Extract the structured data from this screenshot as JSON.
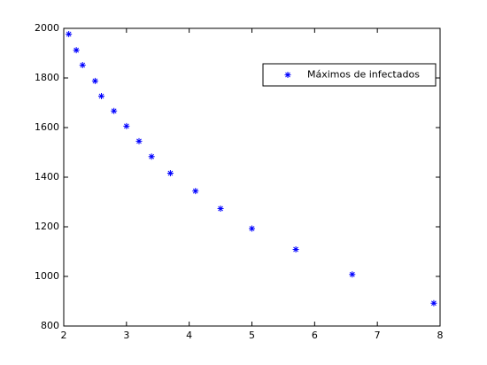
{
  "chart_data": {
    "type": "scatter",
    "series": [
      {
        "name": "Máximos de infectados",
        "color": "#0000ff",
        "x": [
          2.08,
          2.2,
          2.3,
          2.5,
          2.6,
          2.8,
          3.0,
          3.2,
          3.4,
          3.7,
          4.1,
          4.5,
          5.0,
          5.7,
          6.6,
          7.9
        ],
        "values": [
          1977,
          1912,
          1852,
          1788,
          1727,
          1667,
          1606,
          1545,
          1483,
          1416,
          1344,
          1273,
          1193,
          1109,
          1008,
          892
        ]
      }
    ],
    "xlim": [
      2,
      8
    ],
    "xticks": [
      2,
      3,
      4,
      5,
      6,
      7,
      8
    ],
    "ylim": [
      800,
      2000
    ],
    "yticks": [
      800,
      1000,
      1200,
      1400,
      1600,
      1800,
      2000
    ],
    "grid": false,
    "legend": "upper right"
  }
}
